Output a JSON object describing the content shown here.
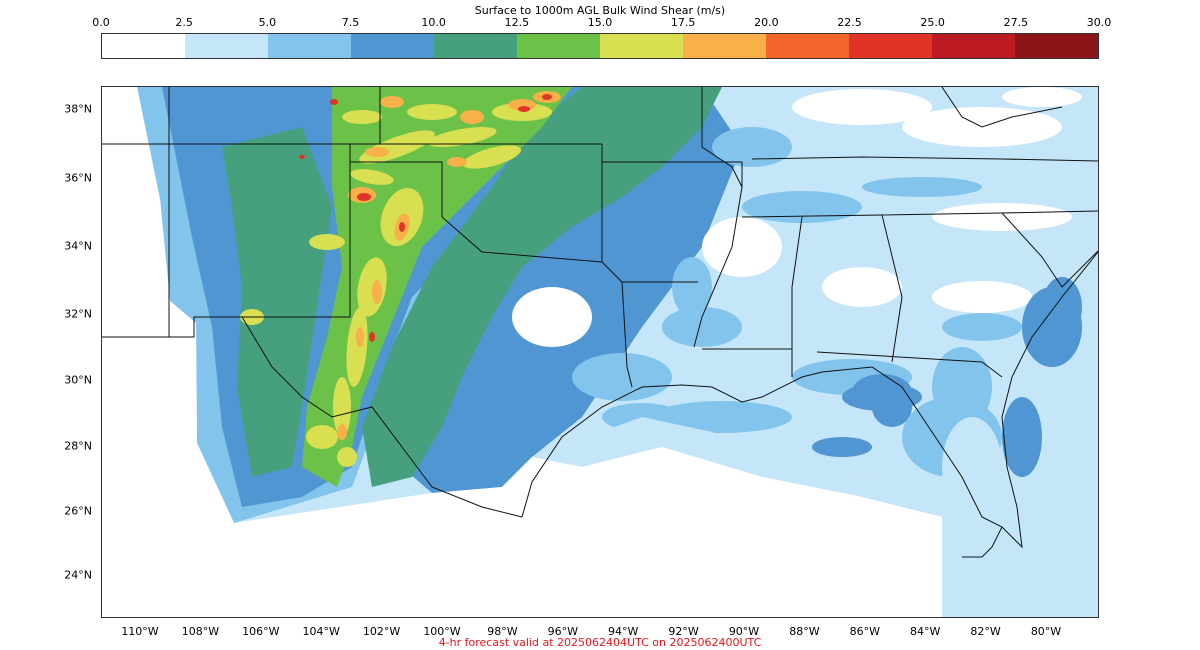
{
  "title": "Surface to 1000m AGL Bulk Wind Shear (m/s)",
  "colorbar": {
    "ticks": [
      "0.0",
      "2.5",
      "5.0",
      "7.5",
      "10.0",
      "12.5",
      "15.0",
      "17.5",
      "20.0",
      "22.5",
      "25.0",
      "27.5",
      "30.0"
    ],
    "colors": [
      "#ffffff",
      "#c4e6f8",
      "#82c4ec",
      "#4f96d2",
      "#46a07d",
      "#6cc148",
      "#d8e052",
      "#f8b048",
      "#f3672d",
      "#df3426",
      "#bd1b24",
      "#8c151a"
    ]
  },
  "lat_labels": [
    "38°N",
    "36°N",
    "34°N",
    "32°N",
    "30°N",
    "28°N",
    "26°N",
    "24°N"
  ],
  "lon_labels": [
    "110°W",
    "108°W",
    "106°W",
    "104°W",
    "102°W",
    "100°W",
    "98°W",
    "96°W",
    "94°W",
    "92°W",
    "90°W",
    "88°W",
    "86°W",
    "84°W",
    "82°W",
    "80°W"
  ],
  "caption": "4-hr forecast valid at 2025062404UTC on 2025062400UTC"
}
